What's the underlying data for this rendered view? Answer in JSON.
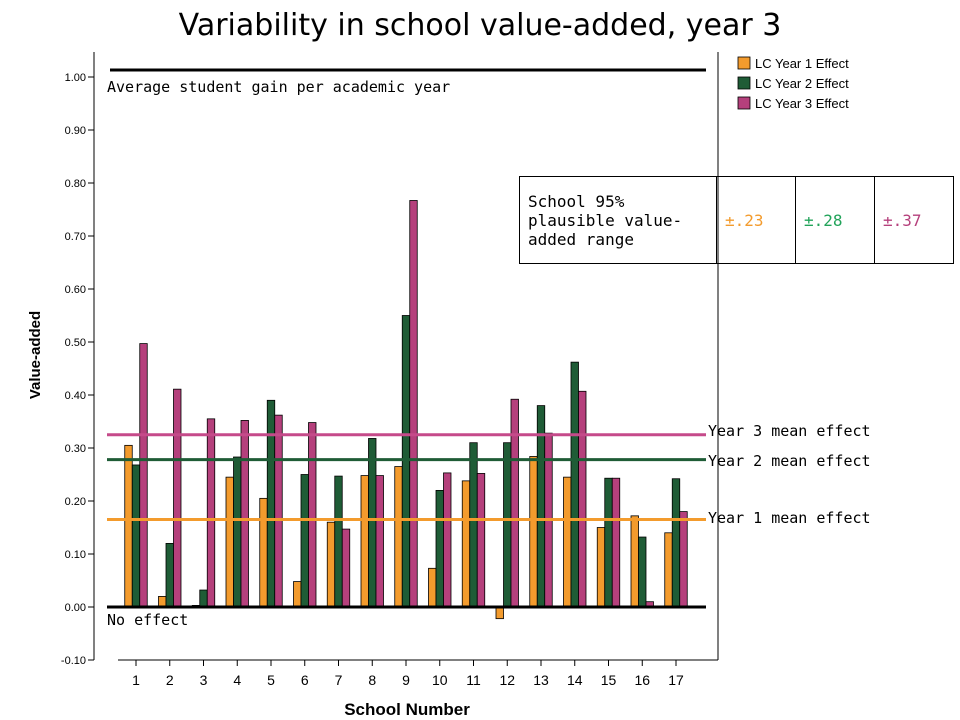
{
  "title": "Variability in school value-added, year 3",
  "chart_data": {
    "type": "bar",
    "title": "Variability in school value-added, year 3",
    "xlabel": "School Number",
    "ylabel": "Value-added",
    "ylim": [
      -0.1,
      1.0
    ],
    "yticks": [
      "-0.10",
      "0.00",
      "0.10",
      "0.20",
      "0.30",
      "0.40",
      "0.50",
      "0.60",
      "0.70",
      "0.80",
      "0.90",
      "1.00"
    ],
    "categories": [
      "1",
      "2",
      "3",
      "4",
      "5",
      "6",
      "7",
      "8",
      "9",
      "10",
      "11",
      "12",
      "13",
      "14",
      "15",
      "16",
      "17"
    ],
    "series": [
      {
        "name": "LC Year 1 Effect",
        "color": "#f39b2d",
        "values": [
          0.305,
          0.02,
          0.003,
          0.245,
          0.205,
          0.048,
          0.16,
          0.248,
          0.265,
          0.073,
          0.238,
          -0.022,
          0.284,
          0.245,
          0.15,
          0.172,
          0.14
        ]
      },
      {
        "name": "LC Year 2 Effect",
        "color": "#1f5c36",
        "values": [
          0.268,
          0.12,
          0.032,
          0.283,
          0.39,
          0.25,
          0.247,
          0.318,
          0.55,
          0.22,
          0.31,
          0.31,
          0.38,
          0.462,
          0.243,
          0.132,
          0.242
        ]
      },
      {
        "name": "LC Year 3 Effect",
        "color": "#b5407c",
        "values": [
          0.497,
          0.411,
          0.355,
          0.352,
          0.362,
          0.348,
          0.147,
          0.248,
          0.767,
          0.253,
          0.252,
          0.392,
          0.328,
          0.407,
          0.243,
          0.01,
          0.18
        ]
      }
    ],
    "reference_lines": [
      {
        "label": "Average student gain per academic year",
        "value": 1.0,
        "color": "#000000"
      },
      {
        "label": "No effect",
        "value": 0.0,
        "color": "#000000"
      },
      {
        "label": "Year 3 mean effect",
        "value": 0.325,
        "color": "#c54a8a"
      },
      {
        "label": "Year 2 mean effect",
        "value": 0.278,
        "color": "#1f5c36"
      },
      {
        "label": "Year 1 mean effect",
        "value": 0.165,
        "color": "#f39b2d"
      }
    ],
    "legend_placement": "top-right"
  },
  "range_table": {
    "header": "School 95% plausible value-added range",
    "header_lines": [
      "School 95%",
      "plausible value-",
      "added range"
    ],
    "values": [
      {
        "text": "±.23",
        "color": "#f39b2d"
      },
      {
        "text": "±.28",
        "color": "#22a35a"
      },
      {
        "text": "±.37",
        "color": "#b5407c"
      }
    ]
  }
}
